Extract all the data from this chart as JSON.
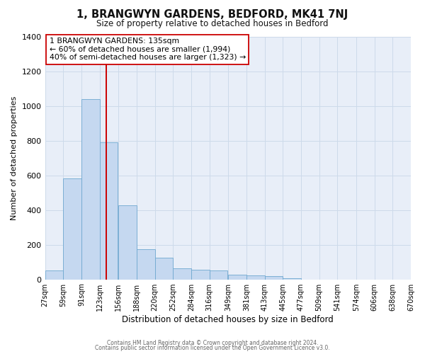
{
  "title": "1, BRANGWYN GARDENS, BEDFORD, MK41 7NJ",
  "subtitle": "Size of property relative to detached houses in Bedford",
  "xlabel": "Distribution of detached houses by size in Bedford",
  "ylabel": "Number of detached properties",
  "bar_left_edges": [
    27,
    59,
    91,
    123,
    156,
    188,
    220,
    252,
    284,
    316,
    349,
    381,
    413,
    445,
    477,
    509,
    541,
    574,
    606,
    638
  ],
  "bar_heights": [
    50,
    580,
    1040,
    790,
    425,
    175,
    125,
    65,
    55,
    50,
    25,
    22,
    20,
    8,
    0,
    0,
    0,
    0,
    0,
    0
  ],
  "bin_width": 32,
  "bar_color": "#c5d8f0",
  "bar_edgecolor": "#6fa8d0",
  "tick_labels": [
    "27sqm",
    "59sqm",
    "91sqm",
    "123sqm",
    "156sqm",
    "188sqm",
    "220sqm",
    "252sqm",
    "284sqm",
    "316sqm",
    "349sqm",
    "381sqm",
    "413sqm",
    "445sqm",
    "477sqm",
    "509sqm",
    "541sqm",
    "574sqm",
    "606sqm",
    "638sqm",
    "670sqm"
  ],
  "ylim": [
    0,
    1400
  ],
  "yticks": [
    0,
    200,
    400,
    600,
    800,
    1000,
    1200,
    1400
  ],
  "vline_x": 135,
  "vline_color": "#cc0000",
  "annotation_title": "1 BRANGWYN GARDENS: 135sqm",
  "annotation_line1": "← 60% of detached houses are smaller (1,994)",
  "annotation_line2": "40% of semi-detached houses are larger (1,323) →",
  "annotation_box_facecolor": "#ffffff",
  "annotation_box_edgecolor": "#cc0000",
  "grid_color": "#cddaea",
  "plot_bg_color": "#e8eef8",
  "fig_bg_color": "#ffffff",
  "footer_line1": "Contains HM Land Registry data © Crown copyright and database right 2024.",
  "footer_line2": "Contains public sector information licensed under the Open Government Licence v3.0."
}
